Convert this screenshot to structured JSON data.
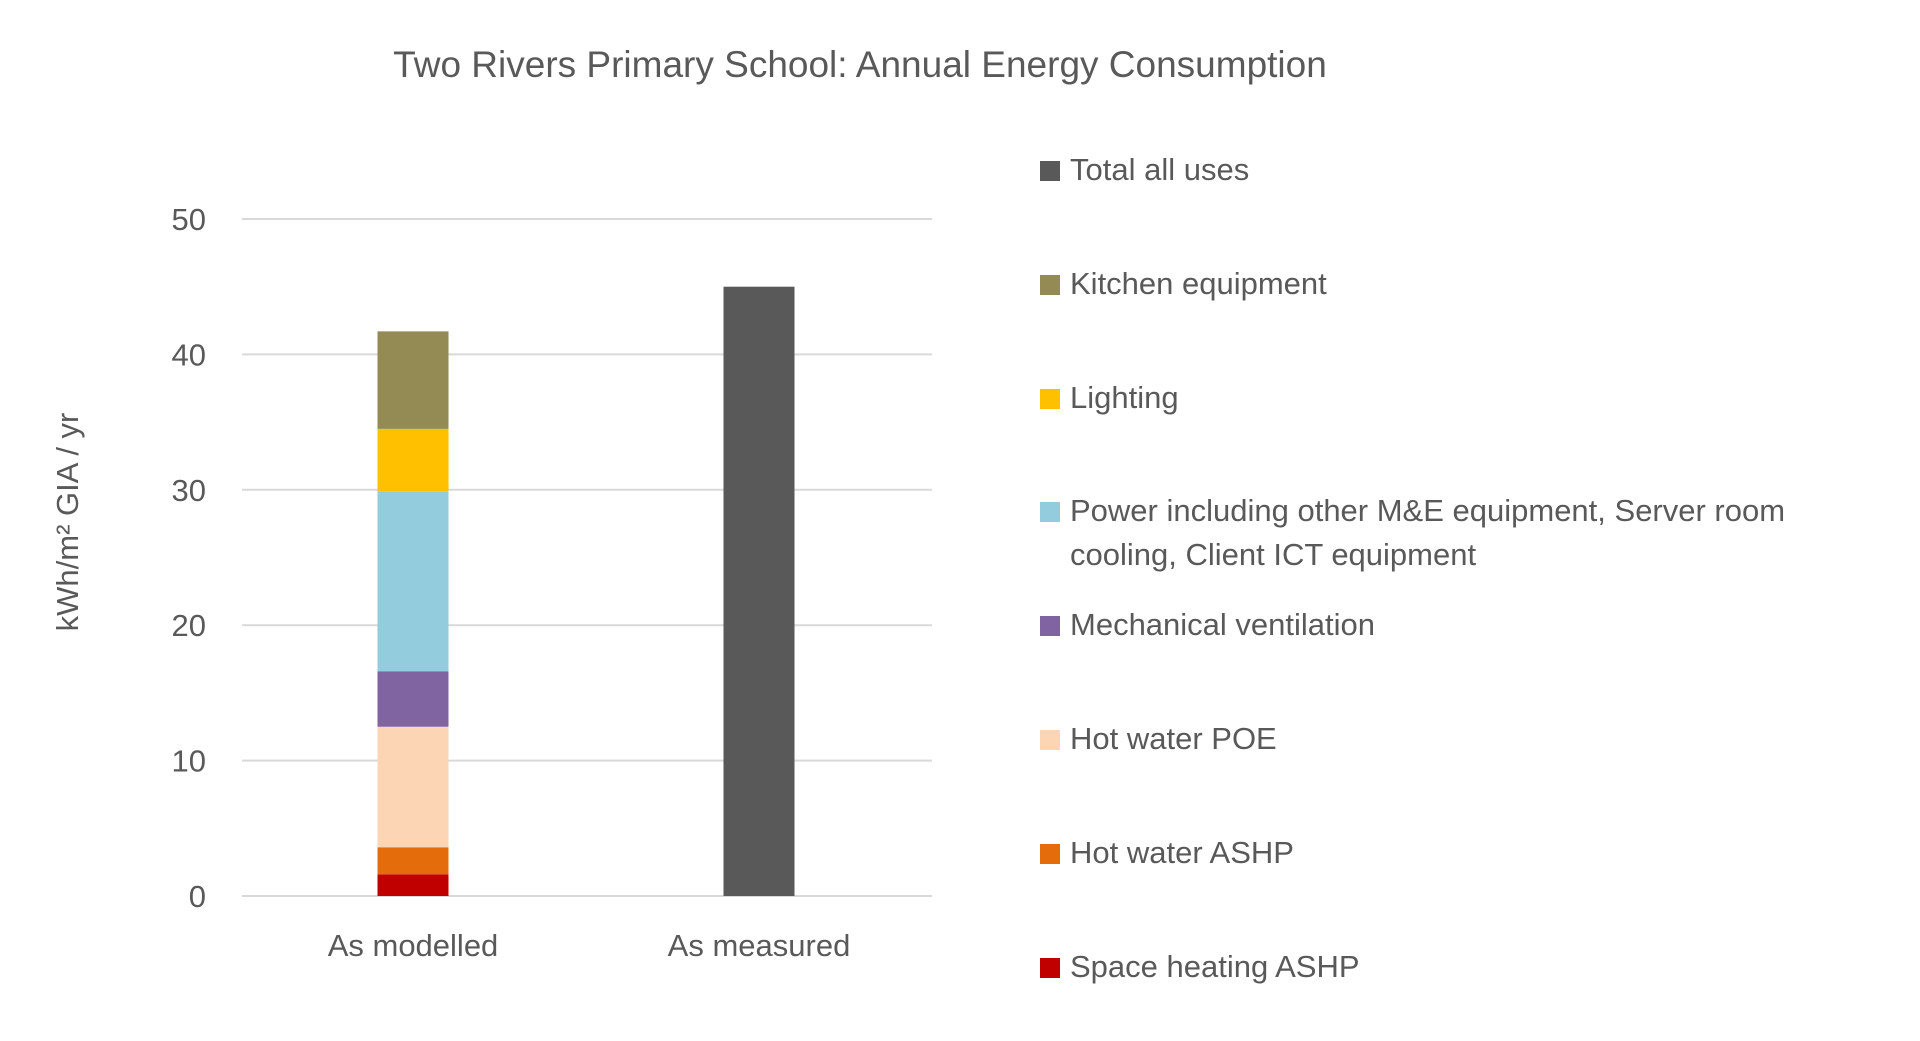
{
  "chart_data": {
    "type": "bar",
    "stacked": true,
    "title": "Two Rivers Primary School: Annual Energy Consumption",
    "xlabel": "",
    "ylabel": "kWh/m² GIA / yr",
    "ylim": [
      0,
      50
    ],
    "yticks": [
      "0",
      "10",
      "20",
      "30",
      "40",
      "50"
    ],
    "grid": true,
    "legend_position": "right",
    "categories": [
      "As modelled",
      "As measured"
    ],
    "series": [
      {
        "name": "Space heating ASHP",
        "color": "#C00000",
        "values": [
          1.6,
          0
        ]
      },
      {
        "name": "Hot water ASHP",
        "color": "#E46C0A",
        "values": [
          2.0,
          0
        ]
      },
      {
        "name": "Hot water POE",
        "color": "#FCD5B5",
        "values": [
          8.9,
          0
        ]
      },
      {
        "name": "Mechanical ventilation",
        "color": "#8064A2",
        "values": [
          4.1,
          0
        ]
      },
      {
        "name": "Power including other M&E equipment, Server room cooling, Client ICT equipment",
        "color": "#93CDDD",
        "values": [
          13.3,
          0
        ]
      },
      {
        "name": "Lighting",
        "color": "#FFC000",
        "values": [
          4.6,
          0
        ]
      },
      {
        "name": "Kitchen equipment",
        "color": "#948A54",
        "values": [
          7.2,
          0
        ]
      },
      {
        "name": "Total all uses",
        "color": "#595959",
        "values": [
          0,
          45
        ]
      }
    ]
  }
}
